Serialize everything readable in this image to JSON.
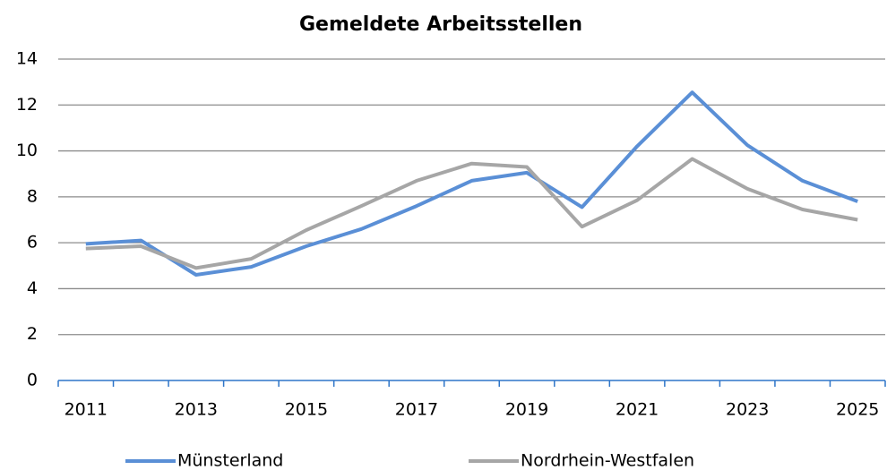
{
  "chart_data": {
    "type": "line",
    "title": "Gemeldete Arbeitsstellen",
    "categories": [
      "2011",
      null,
      "2013",
      null,
      "2015",
      null,
      "2017",
      null,
      "2019",
      null,
      "2021",
      null,
      "2023",
      null,
      "2025"
    ],
    "series": [
      {
        "name": "Münsterland",
        "color": "#5a8fd6",
        "values": [
          5.95,
          6.1,
          4.6,
          4.95,
          5.85,
          6.6,
          7.6,
          8.7,
          9.05,
          7.55,
          10.2,
          12.55,
          10.25,
          8.7,
          7.8
        ]
      },
      {
        "name": "Nordrhein-Westfalen",
        "color": "#a6a6a6",
        "values": [
          5.75,
          5.85,
          4.9,
          5.3,
          6.55,
          7.6,
          8.7,
          9.45,
          9.3,
          6.7,
          7.85,
          9.65,
          8.35,
          7.45,
          7.0
        ]
      }
    ],
    "ylim": [
      0,
      14
    ],
    "yticks": [
      0,
      2,
      4,
      6,
      8,
      10,
      12,
      14
    ],
    "grid": true
  }
}
